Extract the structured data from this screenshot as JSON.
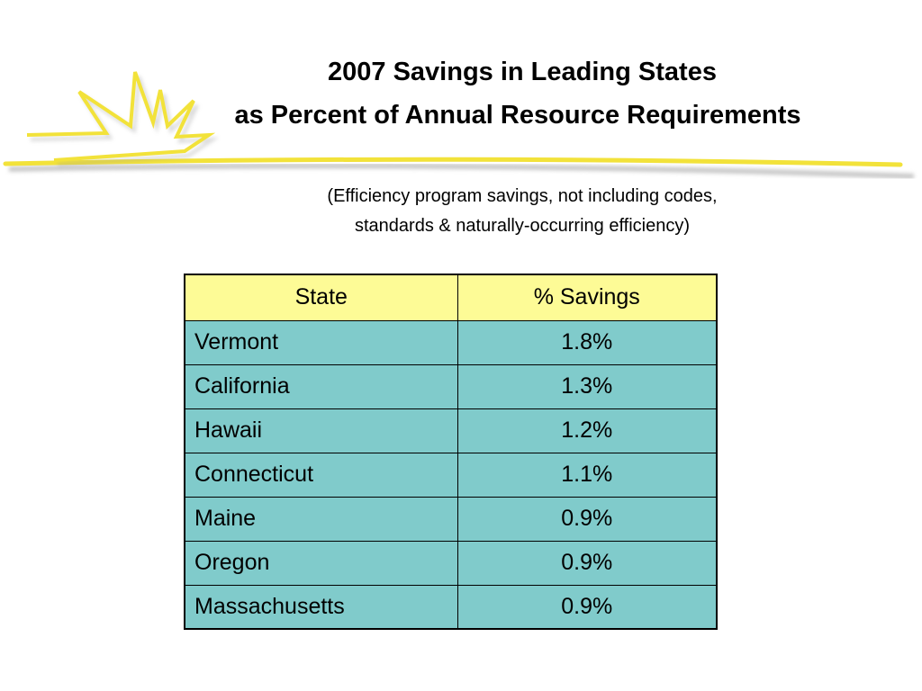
{
  "slide": {
    "title_lines": [
      "2007 Savings in Leading States",
      "as Percent of Annual Resource Requirements"
    ],
    "subtitle_lines": [
      "(Efficiency program savings, not including codes,",
      "standards & naturally-occurring efficiency)"
    ],
    "accent_color": "#f2e23a",
    "decoration_icon": "starburst-icon"
  },
  "table": {
    "headers": [
      "State",
      "% Savings"
    ],
    "header_color": "#fdfb96",
    "row_color": "#80cbcb",
    "rows": [
      {
        "state": "Vermont",
        "savings": "1.8%"
      },
      {
        "state": "California",
        "savings": "1.3%"
      },
      {
        "state": "Hawaii",
        "savings": "1.2%"
      },
      {
        "state": "Connecticut",
        "savings": "1.1%"
      },
      {
        "state": "Maine",
        "savings": "0.9%"
      },
      {
        "state": "Oregon",
        "savings": "0.9%"
      },
      {
        "state": "Massachusetts",
        "savings": "0.9%"
      }
    ]
  }
}
